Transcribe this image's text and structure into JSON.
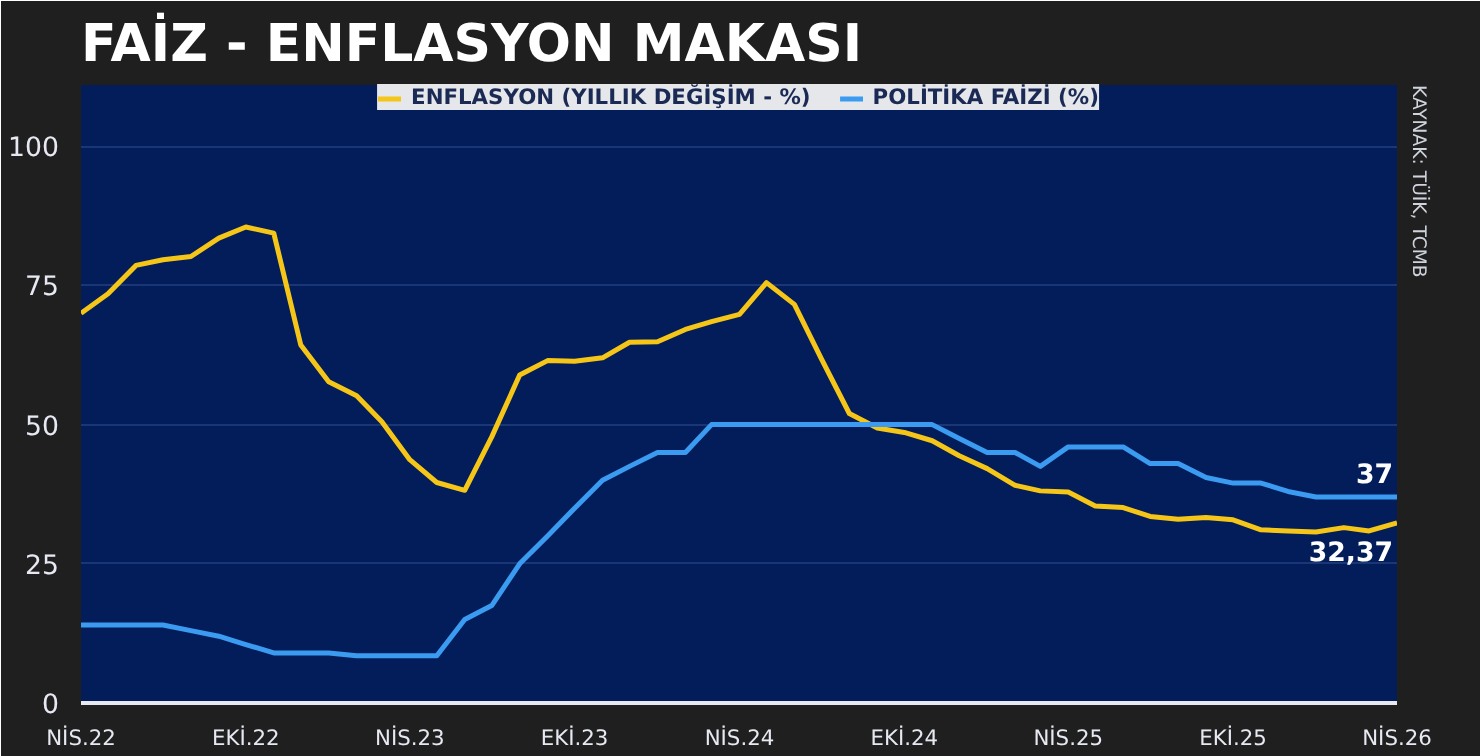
{
  "chart_data": {
    "type": "line",
    "title": "FAİZ - ENFLASYON MAKASI",
    "x": [
      "2022-04",
      "2022-05",
      "2022-06",
      "2022-07",
      "2022-08",
      "2022-09",
      "2022-10",
      "2022-11",
      "2022-12",
      "2023-01",
      "2023-02",
      "2023-03",
      "2023-04",
      "2023-05",
      "2023-06",
      "2023-07",
      "2023-08",
      "2023-09",
      "2023-10",
      "2023-11",
      "2023-12",
      "2024-01",
      "2024-02",
      "2024-03",
      "2024-04",
      "2024-05",
      "2024-06",
      "2024-07",
      "2024-08",
      "2024-09",
      "2024-10",
      "2024-11",
      "2024-12",
      "2025-01",
      "2025-02",
      "2025-03",
      "2025-04",
      "2025-05",
      "2025-06",
      "2025-07",
      "2025-08",
      "2025-09",
      "2025-10",
      "2025-11",
      "2025-12",
      "2026-01",
      "2026-02",
      "2026-03",
      "2026-04"
    ],
    "series": [
      {
        "name": "ENFLASYON (YILLIK DEĞİŞİM - %)",
        "color": "#f5c518",
        "values": [
          70,
          73.5,
          78.6,
          79.6,
          80.2,
          83.5,
          85.5,
          84.4,
          64.3,
          57.7,
          55.2,
          50.5,
          43.7,
          39.6,
          38.2,
          47.8,
          58.9,
          61.5,
          61.4,
          62,
          64.8,
          64.9,
          67.1,
          68.5,
          69.8,
          75.5,
          71.6,
          61.8,
          52,
          49.4,
          48.6,
          47.1,
          44.4,
          42.1,
          39.1,
          38.1,
          37.9,
          35.4,
          35.1,
          33.5,
          33,
          33.3,
          32.9,
          31.1,
          30.9,
          30.7,
          31.5,
          30.9,
          32.37
        ],
        "value_labels": [
          null,
          null,
          null,
          null,
          null,
          null,
          null,
          null,
          null,
          null,
          null,
          null,
          null,
          null,
          null,
          null,
          null,
          null,
          null,
          null,
          null,
          null,
          null,
          null,
          null,
          null,
          null,
          null,
          null,
          null,
          null,
          null,
          null,
          null,
          null,
          null,
          null,
          null,
          null,
          null,
          null,
          null,
          null,
          null,
          null,
          null,
          null,
          null,
          "32,37"
        ]
      },
      {
        "name": "POLİTİKA FAİZİ (%)",
        "color": "#3a9bf0",
        "values": [
          14,
          14,
          14,
          14,
          13,
          12,
          10.5,
          9,
          9,
          9,
          8.5,
          8.5,
          8.5,
          8.5,
          15,
          17.5,
          25,
          30,
          35,
          40,
          42.5,
          45,
          45,
          50,
          50,
          50,
          50,
          50,
          50,
          50,
          50,
          50,
          47.5,
          45,
          45,
          42.5,
          46,
          46,
          46,
          43,
          43,
          40.5,
          39.5,
          39.5,
          38,
          37,
          37,
          37,
          37
        ],
        "value_labels": [
          null,
          null,
          null,
          null,
          null,
          null,
          null,
          null,
          null,
          null,
          null,
          null,
          null,
          null,
          null,
          null,
          null,
          null,
          null,
          null,
          null,
          null,
          null,
          null,
          null,
          null,
          null,
          null,
          null,
          null,
          null,
          null,
          null,
          null,
          null,
          null,
          null,
          null,
          null,
          null,
          null,
          null,
          null,
          null,
          null,
          null,
          null,
          null,
          "37"
        ]
      }
    ],
    "xlim": [
      "2022-04",
      "2026-04"
    ],
    "xticks": [
      {
        "value": "2022-04",
        "label": "NİS.22"
      },
      {
        "value": "2022-10",
        "label": "EKİ.22"
      },
      {
        "value": "2023-04",
        "label": "NİS.23"
      },
      {
        "value": "2023-10",
        "label": "EKİ.23"
      },
      {
        "value": "2024-04",
        "label": "NİS.24"
      },
      {
        "value": "2024-10",
        "label": "EKİ.24"
      },
      {
        "value": "2025-04",
        "label": "NİS.25"
      },
      {
        "value": "2025-10",
        "label": "EKİ.25"
      },
      {
        "value": "2026-04",
        "label": "NİS.26"
      }
    ],
    "ylim": [
      0,
      111
    ],
    "yticks": [
      0,
      25,
      50,
      75,
      100
    ],
    "grid": "y",
    "legend": "top",
    "marker": "none",
    "line_style": "solid",
    "annotations": [
      "KAYNAK: TÜİK, TCMB"
    ]
  }
}
